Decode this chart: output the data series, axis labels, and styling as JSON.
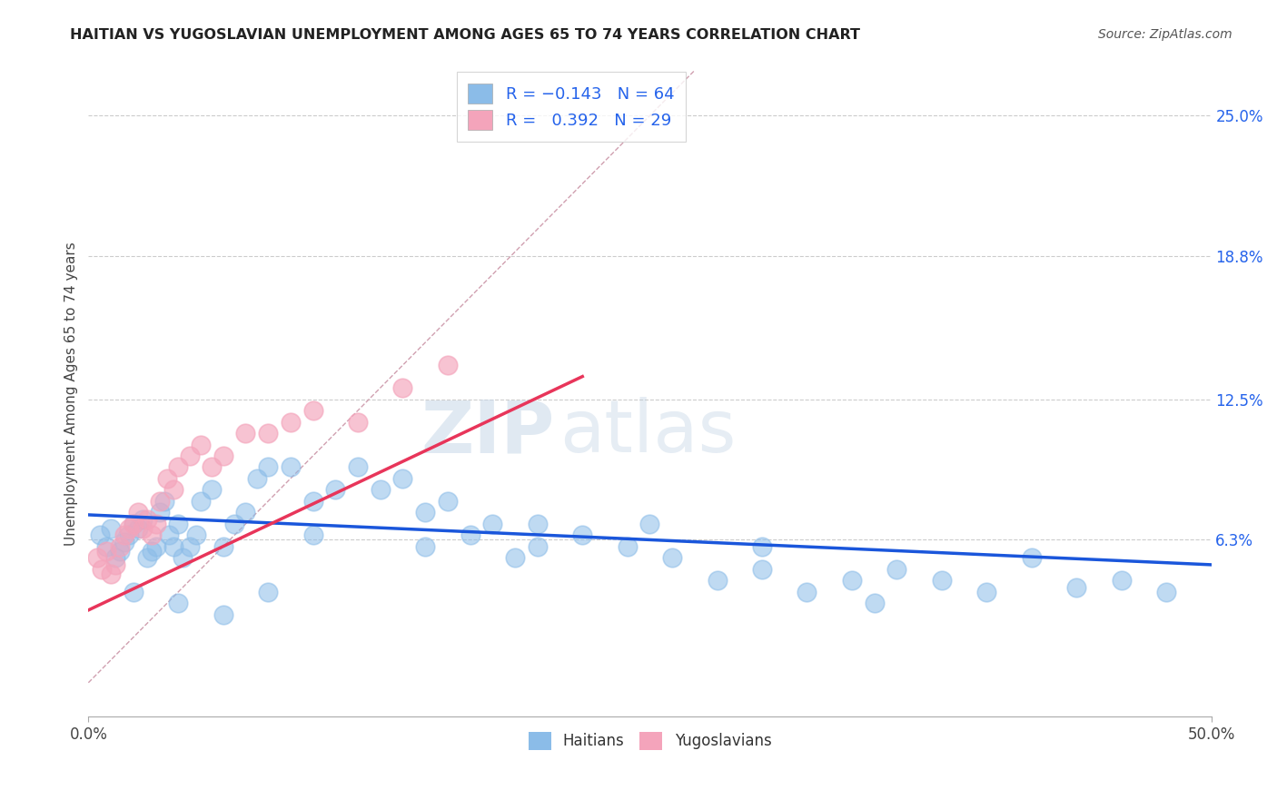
{
  "title": "HAITIAN VS YUGOSLAVIAN UNEMPLOYMENT AMONG AGES 65 TO 74 YEARS CORRELATION CHART",
  "source": "Source: ZipAtlas.com",
  "ylabel": "Unemployment Among Ages 65 to 74 years",
  "xlim": [
    0.0,
    0.5
  ],
  "ylim": [
    -0.015,
    0.27
  ],
  "y_tick_right": [
    0.063,
    0.125,
    0.188,
    0.25
  ],
  "y_tick_right_labels": [
    "6.3%",
    "12.5%",
    "18.8%",
    "25.0%"
  ],
  "haitian_color": "#8bbce8",
  "yugoslavian_color": "#f4a4bb",
  "haitian_line_color": "#1a56db",
  "yugoslavian_line_color": "#e8355a",
  "diagonal_color": "#d0a0b0",
  "r_haitian": -0.143,
  "n_haitian": 64,
  "r_yugoslavian": 0.392,
  "n_yugoslavian": 29,
  "watermark_zip": "ZIP",
  "watermark_atlas": "atlas",
  "haitian_scatter_x": [
    0.005,
    0.008,
    0.01,
    0.012,
    0.014,
    0.016,
    0.018,
    0.02,
    0.022,
    0.024,
    0.026,
    0.028,
    0.03,
    0.032,
    0.034,
    0.036,
    0.038,
    0.04,
    0.042,
    0.045,
    0.048,
    0.05,
    0.055,
    0.06,
    0.065,
    0.07,
    0.075,
    0.08,
    0.09,
    0.1,
    0.11,
    0.12,
    0.13,
    0.14,
    0.15,
    0.16,
    0.17,
    0.18,
    0.19,
    0.2,
    0.22,
    0.24,
    0.26,
    0.28,
    0.3,
    0.32,
    0.34,
    0.36,
    0.38,
    0.4,
    0.42,
    0.44,
    0.46,
    0.48,
    0.25,
    0.35,
    0.3,
    0.2,
    0.15,
    0.1,
    0.08,
    0.06,
    0.04,
    0.02
  ],
  "haitian_scatter_y": [
    0.065,
    0.06,
    0.068,
    0.055,
    0.058,
    0.062,
    0.065,
    0.07,
    0.068,
    0.072,
    0.055,
    0.058,
    0.06,
    0.075,
    0.08,
    0.065,
    0.06,
    0.07,
    0.055,
    0.06,
    0.065,
    0.08,
    0.085,
    0.06,
    0.07,
    0.075,
    0.09,
    0.095,
    0.095,
    0.08,
    0.085,
    0.095,
    0.085,
    0.09,
    0.075,
    0.08,
    0.065,
    0.07,
    0.055,
    0.06,
    0.065,
    0.06,
    0.055,
    0.045,
    0.05,
    0.04,
    0.045,
    0.05,
    0.045,
    0.04,
    0.055,
    0.042,
    0.045,
    0.04,
    0.07,
    0.035,
    0.06,
    0.07,
    0.06,
    0.065,
    0.04,
    0.03,
    0.035,
    0.04
  ],
  "yugoslavian_scatter_x": [
    0.004,
    0.006,
    0.008,
    0.01,
    0.012,
    0.014,
    0.016,
    0.018,
    0.02,
    0.022,
    0.024,
    0.026,
    0.028,
    0.03,
    0.032,
    0.035,
    0.038,
    0.04,
    0.045,
    0.05,
    0.055,
    0.06,
    0.07,
    0.08,
    0.09,
    0.1,
    0.12,
    0.14,
    0.16
  ],
  "yugoslavian_scatter_y": [
    0.055,
    0.05,
    0.058,
    0.048,
    0.052,
    0.06,
    0.065,
    0.068,
    0.07,
    0.075,
    0.068,
    0.072,
    0.065,
    0.07,
    0.08,
    0.09,
    0.085,
    0.095,
    0.1,
    0.105,
    0.095,
    0.1,
    0.11,
    0.11,
    0.115,
    0.12,
    0.115,
    0.13,
    0.14
  ],
  "haitian_trend_x": [
    0.0,
    0.5
  ],
  "haitian_trend_y": [
    0.074,
    0.052
  ],
  "yugoslavian_trend_x": [
    0.0,
    0.22
  ],
  "yugoslavian_trend_y": [
    0.032,
    0.135
  ]
}
